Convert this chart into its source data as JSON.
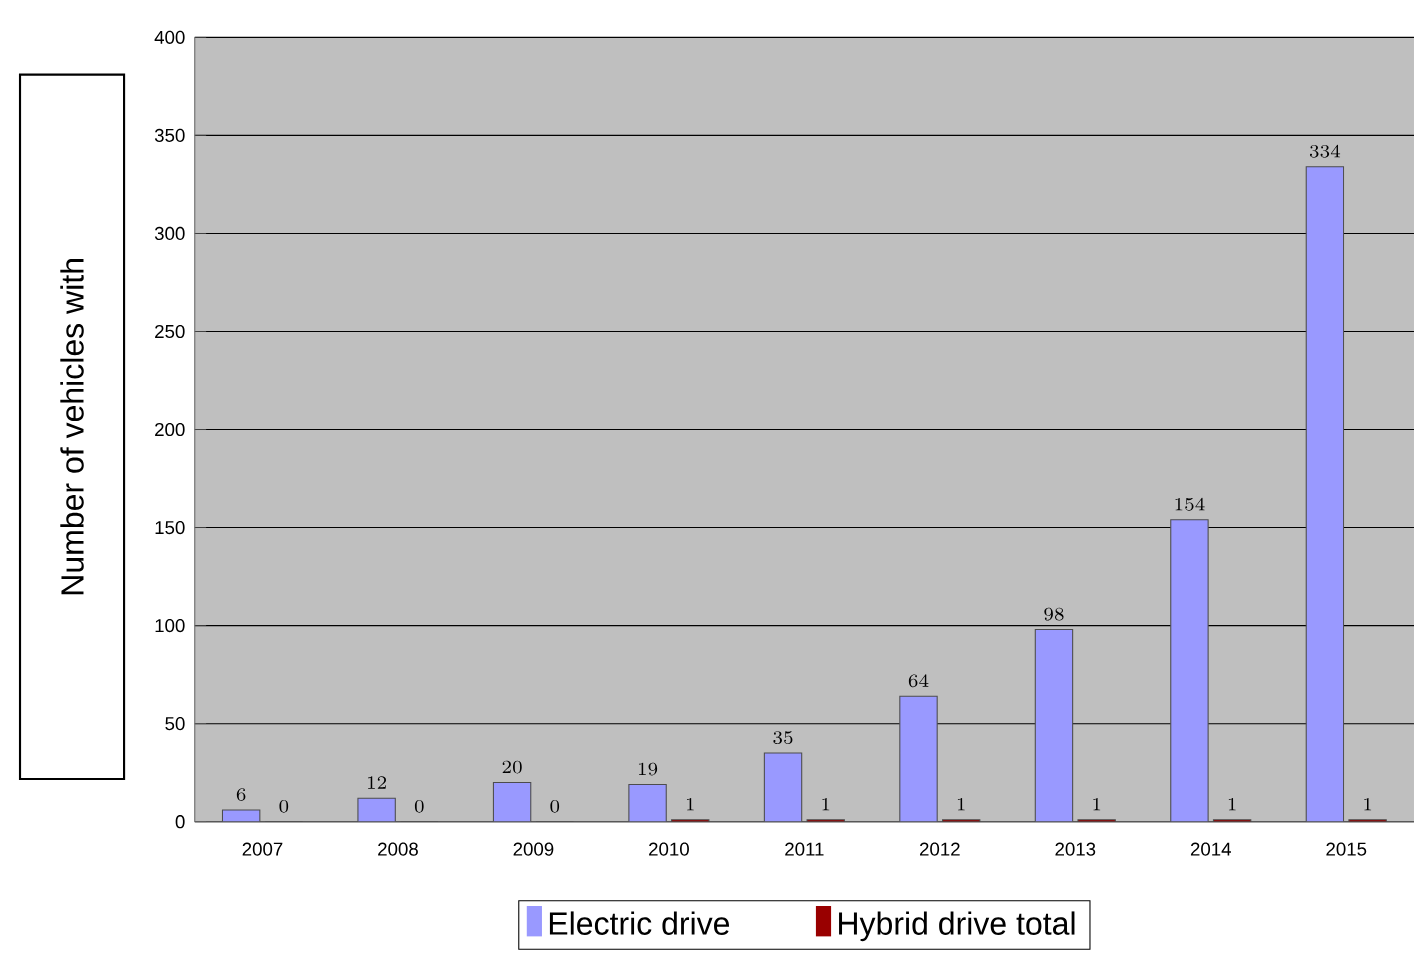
{
  "chart_data": {
    "type": "bar",
    "ylabel": "Number of vehicles with",
    "categories": [
      "2007",
      "2008",
      "2009",
      "2010",
      "2011",
      "2012",
      "2013",
      "2014",
      "2015"
    ],
    "series": [
      {
        "name": "Electric drive",
        "color": "#9999ff",
        "values": [
          6,
          12,
          20,
          19,
          35,
          64,
          98,
          154,
          334
        ]
      },
      {
        "name": "Hybrid drive  total",
        "color": "#990000",
        "values": [
          0,
          0,
          0,
          1,
          1,
          1,
          1,
          1,
          1
        ]
      }
    ],
    "ylim": [
      0,
      400
    ],
    "yticks": [
      0,
      50,
      100,
      150,
      200,
      250,
      300,
      350,
      400
    ],
    "grid": "y",
    "legend": "bottom",
    "data_labels": true
  }
}
